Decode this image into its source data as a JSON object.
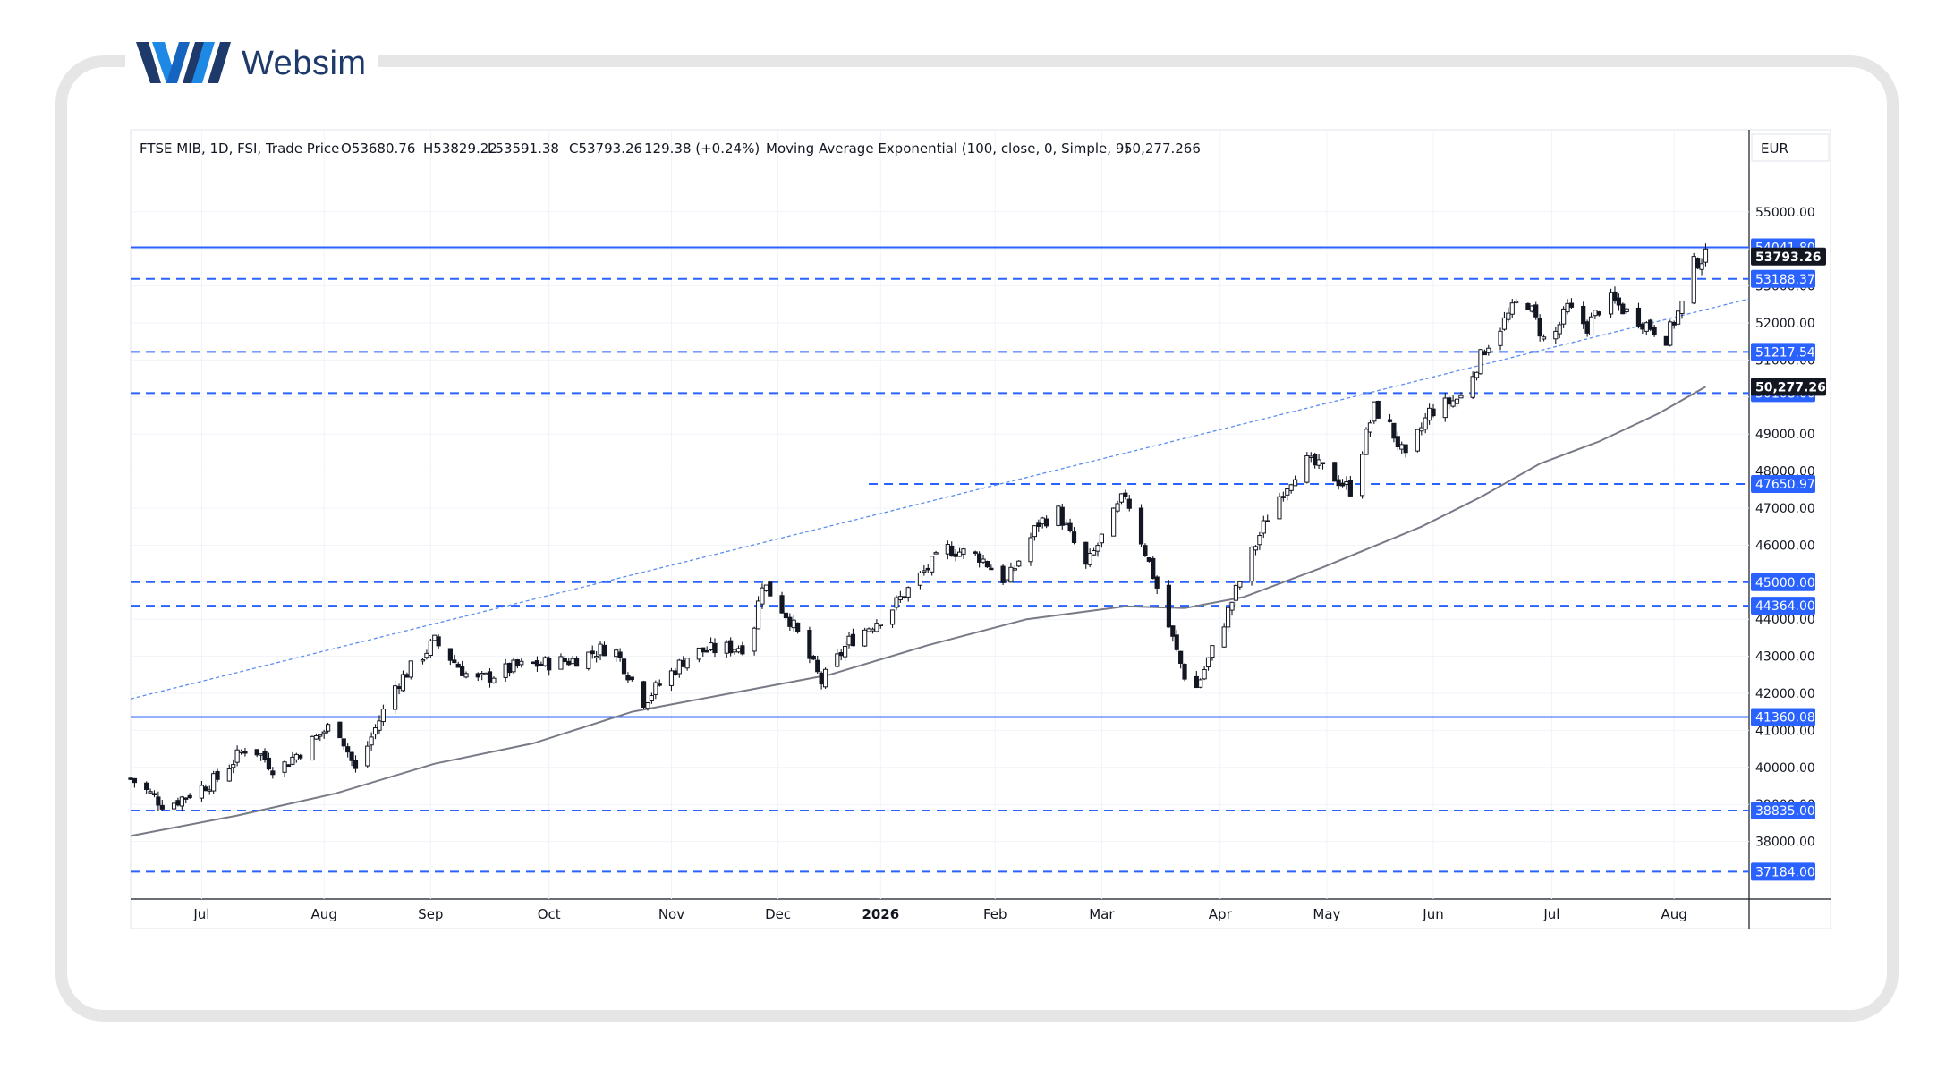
{
  "brand": {
    "name": "Websim",
    "colors": {
      "dark": "#1d3a6b",
      "light": "#1e88e5"
    }
  },
  "chart_data": {
    "type": "candlestick",
    "header": {
      "symbol": "FTSE MIB, 1D, FSI, Trade Price",
      "open": "O53680.76",
      "high": "H53829.22",
      "low": "L53591.38",
      "close": "C53793.26",
      "change": "129.38 (+0.24%)",
      "indicator": "Moving Average Exponential (100, close, 0, Simple, 9)",
      "indicator_value": "50,277.266"
    },
    "currency": "EUR",
    "ylim": [
      37000,
      56000
    ],
    "y_ticks": [
      38000,
      39000,
      40000,
      41000,
      42000,
      43000,
      44000,
      45000,
      46000,
      47000,
      48000,
      49000,
      50000,
      51000,
      52000,
      53000,
      54000,
      55000
    ],
    "x_labels": [
      {
        "label": "Jul",
        "day": 21
      },
      {
        "label": "Aug",
        "day": 52
      },
      {
        "label": "Sep",
        "day": 79
      },
      {
        "label": "Oct",
        "day": 109
      },
      {
        "label": "Nov",
        "day": 140
      },
      {
        "label": "Dec",
        "day": 167
      },
      {
        "label": "2026",
        "day": 193,
        "bold": true
      },
      {
        "label": "Feb",
        "day": 222
      },
      {
        "label": "Mar",
        "day": 249
      },
      {
        "label": "Apr",
        "day": 279
      },
      {
        "label": "May",
        "day": 306
      },
      {
        "label": "Jun",
        "day": 333
      },
      {
        "label": "Jul",
        "day": 363
      },
      {
        "label": "Aug",
        "day": 394
      }
    ],
    "day_range": [
      3,
      413
    ],
    "last_day": 402,
    "levels": [
      {
        "value": 54041.8,
        "label": "54041.80",
        "style": "solid"
      },
      {
        "value": 53188.37,
        "label": "53188.37",
        "style": "dashed"
      },
      {
        "value": 51217.54,
        "label": "51217.54",
        "style": "dashed"
      },
      {
        "value": 50108.0,
        "label": "50108.00",
        "style": "dashed"
      },
      {
        "value": 47650.97,
        "label": "47650.97",
        "style": "dashed",
        "from_day": 190
      },
      {
        "value": 45000.0,
        "label": "45000.00",
        "style": "dashed"
      },
      {
        "value": 44364.0,
        "label": "44364.00",
        "style": "dashed"
      },
      {
        "value": 41360.08,
        "label": "41360.08",
        "style": "solid"
      },
      {
        "value": 38835.0,
        "label": "38835.00",
        "style": "dashed"
      },
      {
        "value": 37184.0,
        "label": "37184.00",
        "style": "dashed"
      }
    ],
    "last_price": {
      "value": 53793.26,
      "label": "53793.26"
    },
    "ema_label": {
      "value": 50277.266,
      "label": "50,277.266"
    },
    "trendline": {
      "from": {
        "day": 3,
        "value": 41850
      },
      "to": {
        "day": 413,
        "value": 52650
      }
    },
    "ema_path": [
      {
        "day": 3,
        "value": 38150
      },
      {
        "day": 30,
        "value": 38700
      },
      {
        "day": 55,
        "value": 39300
      },
      {
        "day": 80,
        "value": 40100
      },
      {
        "day": 105,
        "value": 40650
      },
      {
        "day": 130,
        "value": 41500
      },
      {
        "day": 155,
        "value": 42000
      },
      {
        "day": 180,
        "value": 42500
      },
      {
        "day": 205,
        "value": 43300
      },
      {
        "day": 230,
        "value": 44000
      },
      {
        "day": 255,
        "value": 44350
      },
      {
        "day": 270,
        "value": 44300
      },
      {
        "day": 285,
        "value": 44600
      },
      {
        "day": 305,
        "value": 45400
      },
      {
        "day": 330,
        "value": 46500
      },
      {
        "day": 345,
        "value": 47300
      },
      {
        "day": 360,
        "value": 48200
      },
      {
        "day": 375,
        "value": 48800
      },
      {
        "day": 390,
        "value": 49550
      },
      {
        "day": 402,
        "value": 50277
      }
    ],
    "price_anchors": [
      {
        "day": 3,
        "value": 39700
      },
      {
        "day": 12,
        "value": 38950
      },
      {
        "day": 25,
        "value": 39700
      },
      {
        "day": 33,
        "value": 40650
      },
      {
        "day": 40,
        "value": 39900
      },
      {
        "day": 50,
        "value": 40800
      },
      {
        "day": 55,
        "value": 41250
      },
      {
        "day": 60,
        "value": 39900
      },
      {
        "day": 70,
        "value": 42200
      },
      {
        "day": 80,
        "value": 43400
      },
      {
        "day": 90,
        "value": 42300
      },
      {
        "day": 100,
        "value": 42700
      },
      {
        "day": 115,
        "value": 42900
      },
      {
        "day": 125,
        "value": 43300
      },
      {
        "day": 133,
        "value": 41800
      },
      {
        "day": 145,
        "value": 43100
      },
      {
        "day": 160,
        "value": 43300
      },
      {
        "day": 163,
        "value": 45000
      },
      {
        "day": 170,
        "value": 44000
      },
      {
        "day": 178,
        "value": 42300
      },
      {
        "day": 185,
        "value": 43400
      },
      {
        "day": 195,
        "value": 44200
      },
      {
        "day": 205,
        "value": 45400
      },
      {
        "day": 210,
        "value": 45900
      },
      {
        "day": 218,
        "value": 45700
      },
      {
        "day": 225,
        "value": 45000
      },
      {
        "day": 233,
        "value": 46600
      },
      {
        "day": 238,
        "value": 46900
      },
      {
        "day": 245,
        "value": 45400
      },
      {
        "day": 255,
        "value": 47400
      },
      {
        "day": 262,
        "value": 45200
      },
      {
        "day": 268,
        "value": 43100
      },
      {
        "day": 272,
        "value": 41900
      },
      {
        "day": 278,
        "value": 43400
      },
      {
        "day": 285,
        "value": 45300
      },
      {
        "day": 292,
        "value": 47000
      },
      {
        "day": 300,
        "value": 48300
      },
      {
        "day": 306,
        "value": 48000
      },
      {
        "day": 312,
        "value": 47500
      },
      {
        "day": 318,
        "value": 49700
      },
      {
        "day": 322,
        "value": 49200
      },
      {
        "day": 326,
        "value": 48300
      },
      {
        "day": 332,
        "value": 49600
      },
      {
        "day": 340,
        "value": 50000
      },
      {
        "day": 346,
        "value": 51300
      },
      {
        "day": 352,
        "value": 52200
      },
      {
        "day": 356,
        "value": 52800
      },
      {
        "day": 362,
        "value": 51300
      },
      {
        "day": 367,
        "value": 52400
      },
      {
        "day": 372,
        "value": 51900
      },
      {
        "day": 377,
        "value": 52700
      },
      {
        "day": 382,
        "value": 52300
      },
      {
        "day": 388,
        "value": 51900
      },
      {
        "day": 392,
        "value": 51600
      },
      {
        "day": 396,
        "value": 52500
      },
      {
        "day": 399,
        "value": 53600
      },
      {
        "day": 402,
        "value": 53793
      }
    ]
  }
}
